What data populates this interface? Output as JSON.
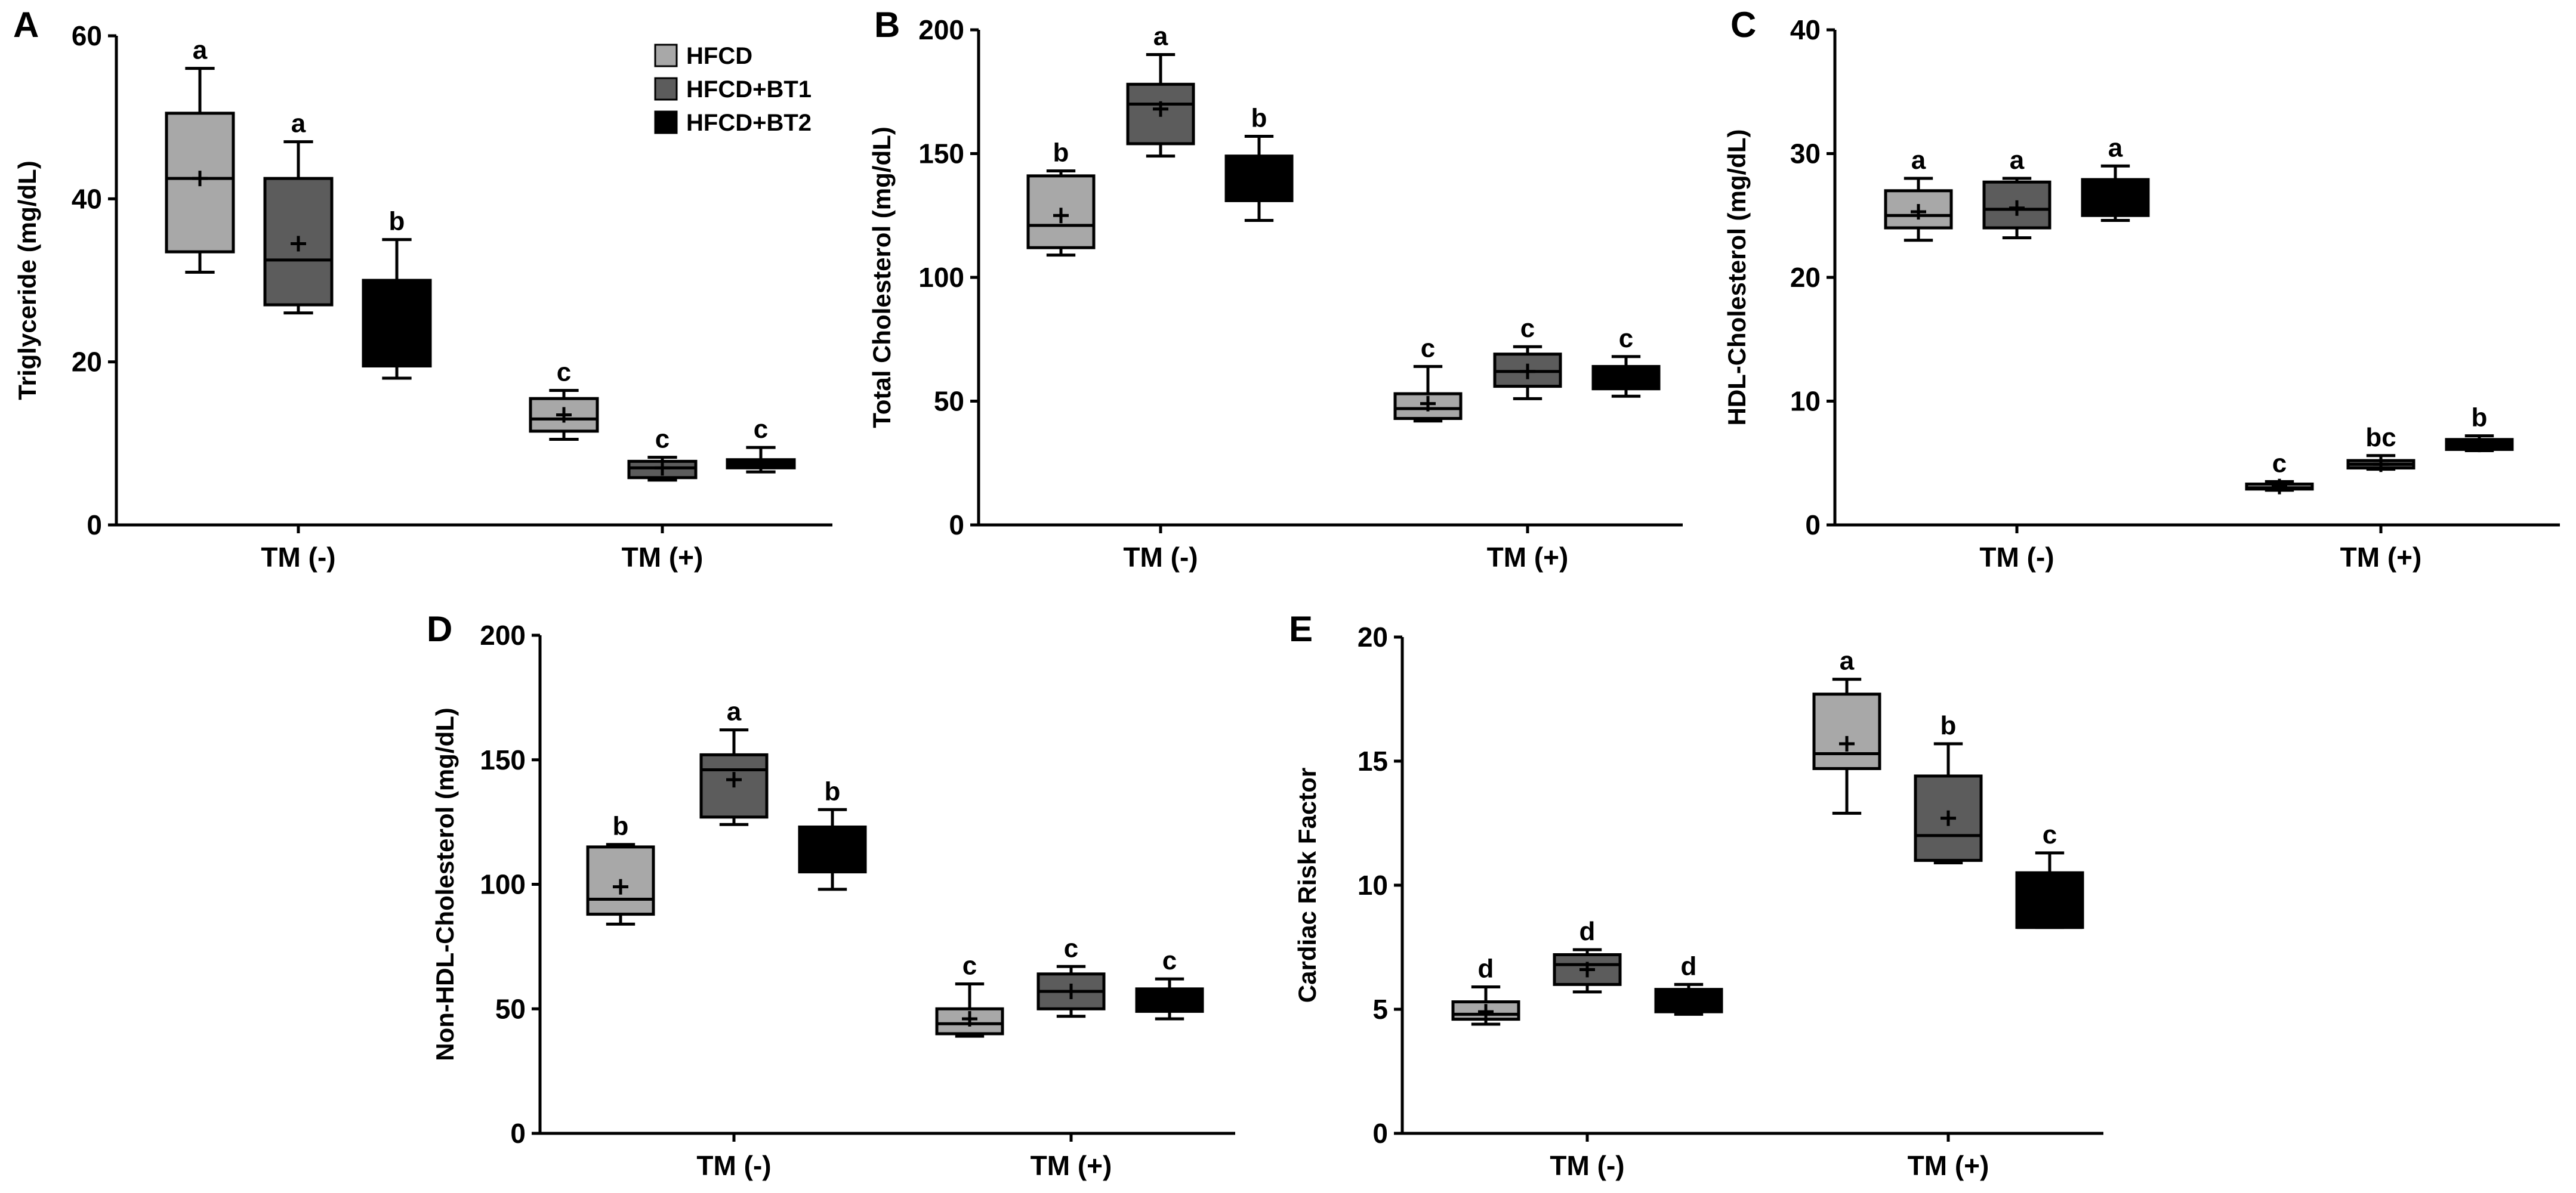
{
  "legend": {
    "items": [
      {
        "name": "HFCD",
        "color": "#a8a8a8"
      },
      {
        "name": "HFCD+BT1",
        "color": "#5c5c5c"
      },
      {
        "name": "HFCD+BT2",
        "color": "#000000"
      }
    ]
  },
  "chart_data": [
    {
      "panel": "A",
      "type": "box",
      "ylabel": "Triglyceride (mg/dL)",
      "ylim": [
        0,
        60
      ],
      "yticks": [
        0,
        20,
        40,
        60
      ],
      "categories": [
        "TM (-)",
        "TM (+)"
      ],
      "series_names": [
        "HFCD",
        "HFCD+BT1",
        "HFCD+BT2"
      ],
      "boxes": [
        {
          "group": "TM (-)",
          "series": "HFCD",
          "min": 31,
          "q1": 33.5,
          "median": 42.5,
          "q3": 50.5,
          "max": 56,
          "mean": 42.5,
          "sig": "a"
        },
        {
          "group": "TM (-)",
          "series": "HFCD+BT1",
          "min": 26,
          "q1": 27,
          "median": 32.5,
          "q3": 42.5,
          "max": 47,
          "mean": 34.5,
          "sig": "a"
        },
        {
          "group": "TM (-)",
          "series": "HFCD+BT2",
          "min": 18,
          "q1": 19.5,
          "median": 19.5,
          "q3": 30,
          "max": 35,
          "mean": 25,
          "sig": "b"
        },
        {
          "group": "TM (+)",
          "series": "HFCD",
          "min": 10.5,
          "q1": 11.5,
          "median": 13,
          "q3": 15.5,
          "max": 16.5,
          "mean": 13.5,
          "sig": "c"
        },
        {
          "group": "TM (+)",
          "series": "HFCD+BT1",
          "min": 5.5,
          "q1": 5.8,
          "median": 7,
          "q3": 7.8,
          "max": 8.3,
          "mean": 7,
          "sig": "c"
        },
        {
          "group": "TM (+)",
          "series": "HFCD+BT2",
          "min": 6.5,
          "q1": 7,
          "median": 7.5,
          "q3": 8,
          "max": 9.5,
          "mean": 7.5,
          "sig": "c"
        }
      ]
    },
    {
      "panel": "B",
      "type": "box",
      "ylabel": "Total Cholesterol (mg/dL)",
      "ylim": [
        0,
        200
      ],
      "yticks": [
        0,
        50,
        100,
        150,
        200
      ],
      "categories": [
        "TM (-)",
        "TM (+)"
      ],
      "series_names": [
        "HFCD",
        "HFCD+BT1",
        "HFCD+BT2"
      ],
      "boxes": [
        {
          "group": "TM (-)",
          "series": "HFCD",
          "min": 109,
          "q1": 112,
          "median": 121,
          "q3": 141,
          "max": 143,
          "mean": 125,
          "sig": "b"
        },
        {
          "group": "TM (-)",
          "series": "HFCD+BT1",
          "min": 149,
          "q1": 154,
          "median": 170,
          "q3": 178,
          "max": 190,
          "mean": 168,
          "sig": "a"
        },
        {
          "group": "TM (-)",
          "series": "HFCD+BT2",
          "min": 123,
          "q1": 131,
          "median": 148,
          "q3": 149,
          "max": 157,
          "mean": 140,
          "sig": "b"
        },
        {
          "group": "TM (+)",
          "series": "HFCD",
          "min": 42,
          "q1": 43,
          "median": 47,
          "q3": 53,
          "max": 64,
          "mean": 49,
          "sig": "c"
        },
        {
          "group": "TM (+)",
          "series": "HFCD+BT1",
          "min": 51,
          "q1": 56,
          "median": 62,
          "q3": 69,
          "max": 72,
          "mean": 62,
          "sig": "c"
        },
        {
          "group": "TM (+)",
          "series": "HFCD+BT2",
          "min": 52,
          "q1": 55,
          "median": 57,
          "q3": 64,
          "max": 68,
          "mean": 59,
          "sig": "c"
        }
      ]
    },
    {
      "panel": "C",
      "type": "box",
      "ylabel": "HDL-Cholesterol (mg/dL)",
      "ylim": [
        0,
        40
      ],
      "yticks": [
        0,
        10,
        20,
        30,
        40
      ],
      "categories": [
        "TM (-)",
        "TM (+)"
      ],
      "series_names": [
        "HFCD",
        "HFCD+BT1",
        "HFCD+BT2"
      ],
      "boxes": [
        {
          "group": "TM (-)",
          "series": "HFCD",
          "min": 23,
          "q1": 24,
          "median": 25,
          "q3": 27,
          "max": 28,
          "mean": 25.3,
          "sig": "a"
        },
        {
          "group": "TM (-)",
          "series": "HFCD+BT1",
          "min": 23.2,
          "q1": 24,
          "median": 25.5,
          "q3": 27.7,
          "max": 28,
          "mean": 25.6,
          "sig": "a"
        },
        {
          "group": "TM (-)",
          "series": "HFCD+BT2",
          "min": 24.6,
          "q1": 25,
          "median": 27.5,
          "q3": 27.9,
          "max": 29,
          "mean": 26.5,
          "sig": "a"
        },
        {
          "group": "TM (+)",
          "series": "HFCD",
          "min": 2.8,
          "q1": 2.9,
          "median": 3,
          "q3": 3.3,
          "max": 3.5,
          "mean": 3.1,
          "sig": "c"
        },
        {
          "group": "TM (+)",
          "series": "HFCD+BT1",
          "min": 4.5,
          "q1": 4.6,
          "median": 4.9,
          "q3": 5.2,
          "max": 5.6,
          "mean": 4.9,
          "sig": "bc"
        },
        {
          "group": "TM (+)",
          "series": "HFCD+BT2",
          "min": 6,
          "q1": 6.1,
          "median": 6.4,
          "q3": 6.9,
          "max": 7.2,
          "mean": 6.5,
          "sig": "b"
        }
      ]
    },
    {
      "panel": "D",
      "type": "box",
      "ylabel": "Non-HDL-Cholesterol (mg/dL)",
      "ylim": [
        0,
        200
      ],
      "yticks": [
        0,
        50,
        100,
        150,
        200
      ],
      "categories": [
        "TM (-)",
        "TM (+)"
      ],
      "series_names": [
        "HFCD",
        "HFCD+BT1",
        "HFCD+BT2"
      ],
      "boxes": [
        {
          "group": "TM (-)",
          "series": "HFCD",
          "min": 84,
          "q1": 88,
          "median": 94,
          "q3": 115,
          "max": 116,
          "mean": 99,
          "sig": "b"
        },
        {
          "group": "TM (-)",
          "series": "HFCD+BT1",
          "min": 124,
          "q1": 127,
          "median": 146,
          "q3": 152,
          "max": 162,
          "mean": 142,
          "sig": "a"
        },
        {
          "group": "TM (-)",
          "series": "HFCD+BT2",
          "min": 98,
          "q1": 105,
          "median": 122,
          "q3": 123,
          "max": 130,
          "mean": 114,
          "sig": "b"
        },
        {
          "group": "TM (+)",
          "series": "HFCD",
          "min": 39,
          "q1": 40,
          "median": 44,
          "q3": 50,
          "max": 60,
          "mean": 46,
          "sig": "c"
        },
        {
          "group": "TM (+)",
          "series": "HFCD+BT1",
          "min": 47,
          "q1": 50,
          "median": 57,
          "q3": 64,
          "max": 67,
          "mean": 57,
          "sig": "c"
        },
        {
          "group": "TM (+)",
          "series": "HFCD+BT2",
          "min": 46,
          "q1": 49,
          "median": 52,
          "q3": 58,
          "max": 62,
          "mean": 53,
          "sig": "c"
        }
      ]
    },
    {
      "panel": "E",
      "type": "box",
      "ylabel": "Cardiac Risk Factor",
      "ylim": [
        0,
        20
      ],
      "yticks": [
        0,
        5,
        10,
        15,
        20
      ],
      "categories": [
        "TM (-)",
        "TM (+)"
      ],
      "series_names": [
        "HFCD",
        "HFCD+BT1",
        "HFCD+BT2"
      ],
      "boxes": [
        {
          "group": "TM (-)",
          "series": "HFCD",
          "min": 4.4,
          "q1": 4.6,
          "median": 4.8,
          "q3": 5.3,
          "max": 5.9,
          "mean": 4.9,
          "sig": "d"
        },
        {
          "group": "TM (-)",
          "series": "HFCD+BT1",
          "min": 5.7,
          "q1": 6,
          "median": 6.8,
          "q3": 7.2,
          "max": 7.4,
          "mean": 6.6,
          "sig": "d"
        },
        {
          "group": "TM (-)",
          "series": "HFCD+BT2",
          "min": 4.8,
          "q1": 4.9,
          "median": 5,
          "q3": 5.8,
          "max": 6,
          "mean": 5.3,
          "sig": "d"
        },
        {
          "group": "TM (+)",
          "series": "HFCD",
          "min": 12.9,
          "q1": 14.7,
          "median": 15.3,
          "q3": 17.7,
          "max": 18.3,
          "mean": 15.7,
          "sig": "a"
        },
        {
          "group": "TM (+)",
          "series": "HFCD+BT1",
          "min": 10.9,
          "q1": 11,
          "median": 12,
          "q3": 14.4,
          "max": 15.7,
          "mean": 12.7,
          "sig": "b"
        },
        {
          "group": "TM (+)",
          "series": "HFCD+BT2",
          "min": 8.3,
          "q1": 8.3,
          "median": 8.3,
          "q3": 10.5,
          "max": 11.3,
          "mean": 9.5,
          "sig": "c"
        }
      ]
    }
  ]
}
